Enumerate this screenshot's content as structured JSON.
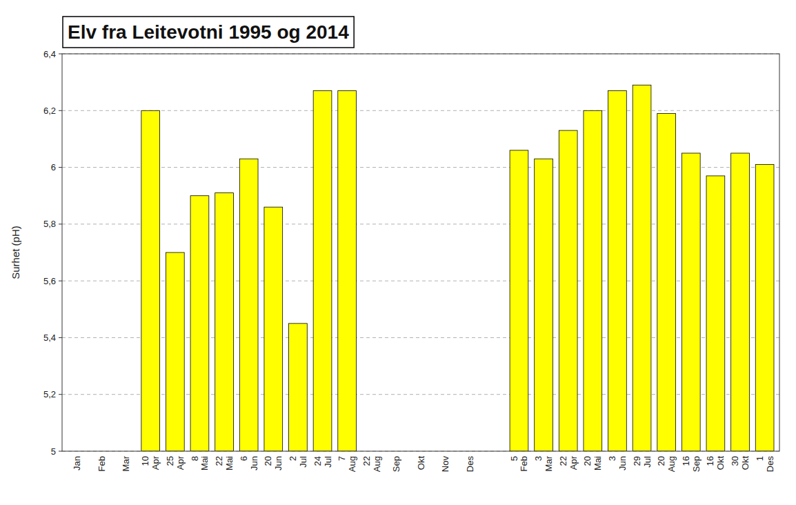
{
  "chart_data": {
    "type": "bar",
    "title": "Elv fra Leitevotni 1995 og 2014",
    "y_label": "Surhet (pH)",
    "categories": [
      "Jan",
      "Feb",
      "Mar",
      "10\nApr",
      "25\nApr",
      "8\nMai",
      "22\nMai",
      "6\nJun",
      "20\nJun",
      "2\nJul",
      "24\nJul",
      "7\nAug",
      "22\nAug",
      "Sep",
      "Okt",
      "Nov",
      "Des",
      null,
      "5\nFeb",
      "3\nMar",
      "22\nApr",
      "20\nMai",
      "3\nJun",
      "29\nJul",
      "20\nAug",
      "16\nSep",
      "16\nOkt",
      "30\nOkt",
      "1\nDes"
    ],
    "values": [
      null,
      null,
      null,
      6.2,
      5.7,
      5.9,
      5.91,
      6.03,
      5.86,
      5.45,
      6.27,
      6.27,
      null,
      null,
      null,
      null,
      null,
      null,
      6.06,
      6.03,
      6.13,
      6.2,
      6.27,
      6.29,
      6.19,
      6.05,
      5.97,
      6.05,
      6.01
    ],
    "color": "#ffff00",
    "ylim": [
      5.0,
      6.4
    ],
    "yticks": [
      5,
      {
        "value": 5.2,
        "label": "5,2"
      },
      {
        "value": 5.4,
        "label": "5,4"
      },
      {
        "value": 5.6,
        "label": "5,6"
      },
      {
        "value": 5.8,
        "label": "5,8"
      },
      6,
      {
        "value": 6.2,
        "label": "6,2"
      },
      {
        "value": 6.4,
        "label": "6,4"
      }
    ],
    "grid": true
  }
}
